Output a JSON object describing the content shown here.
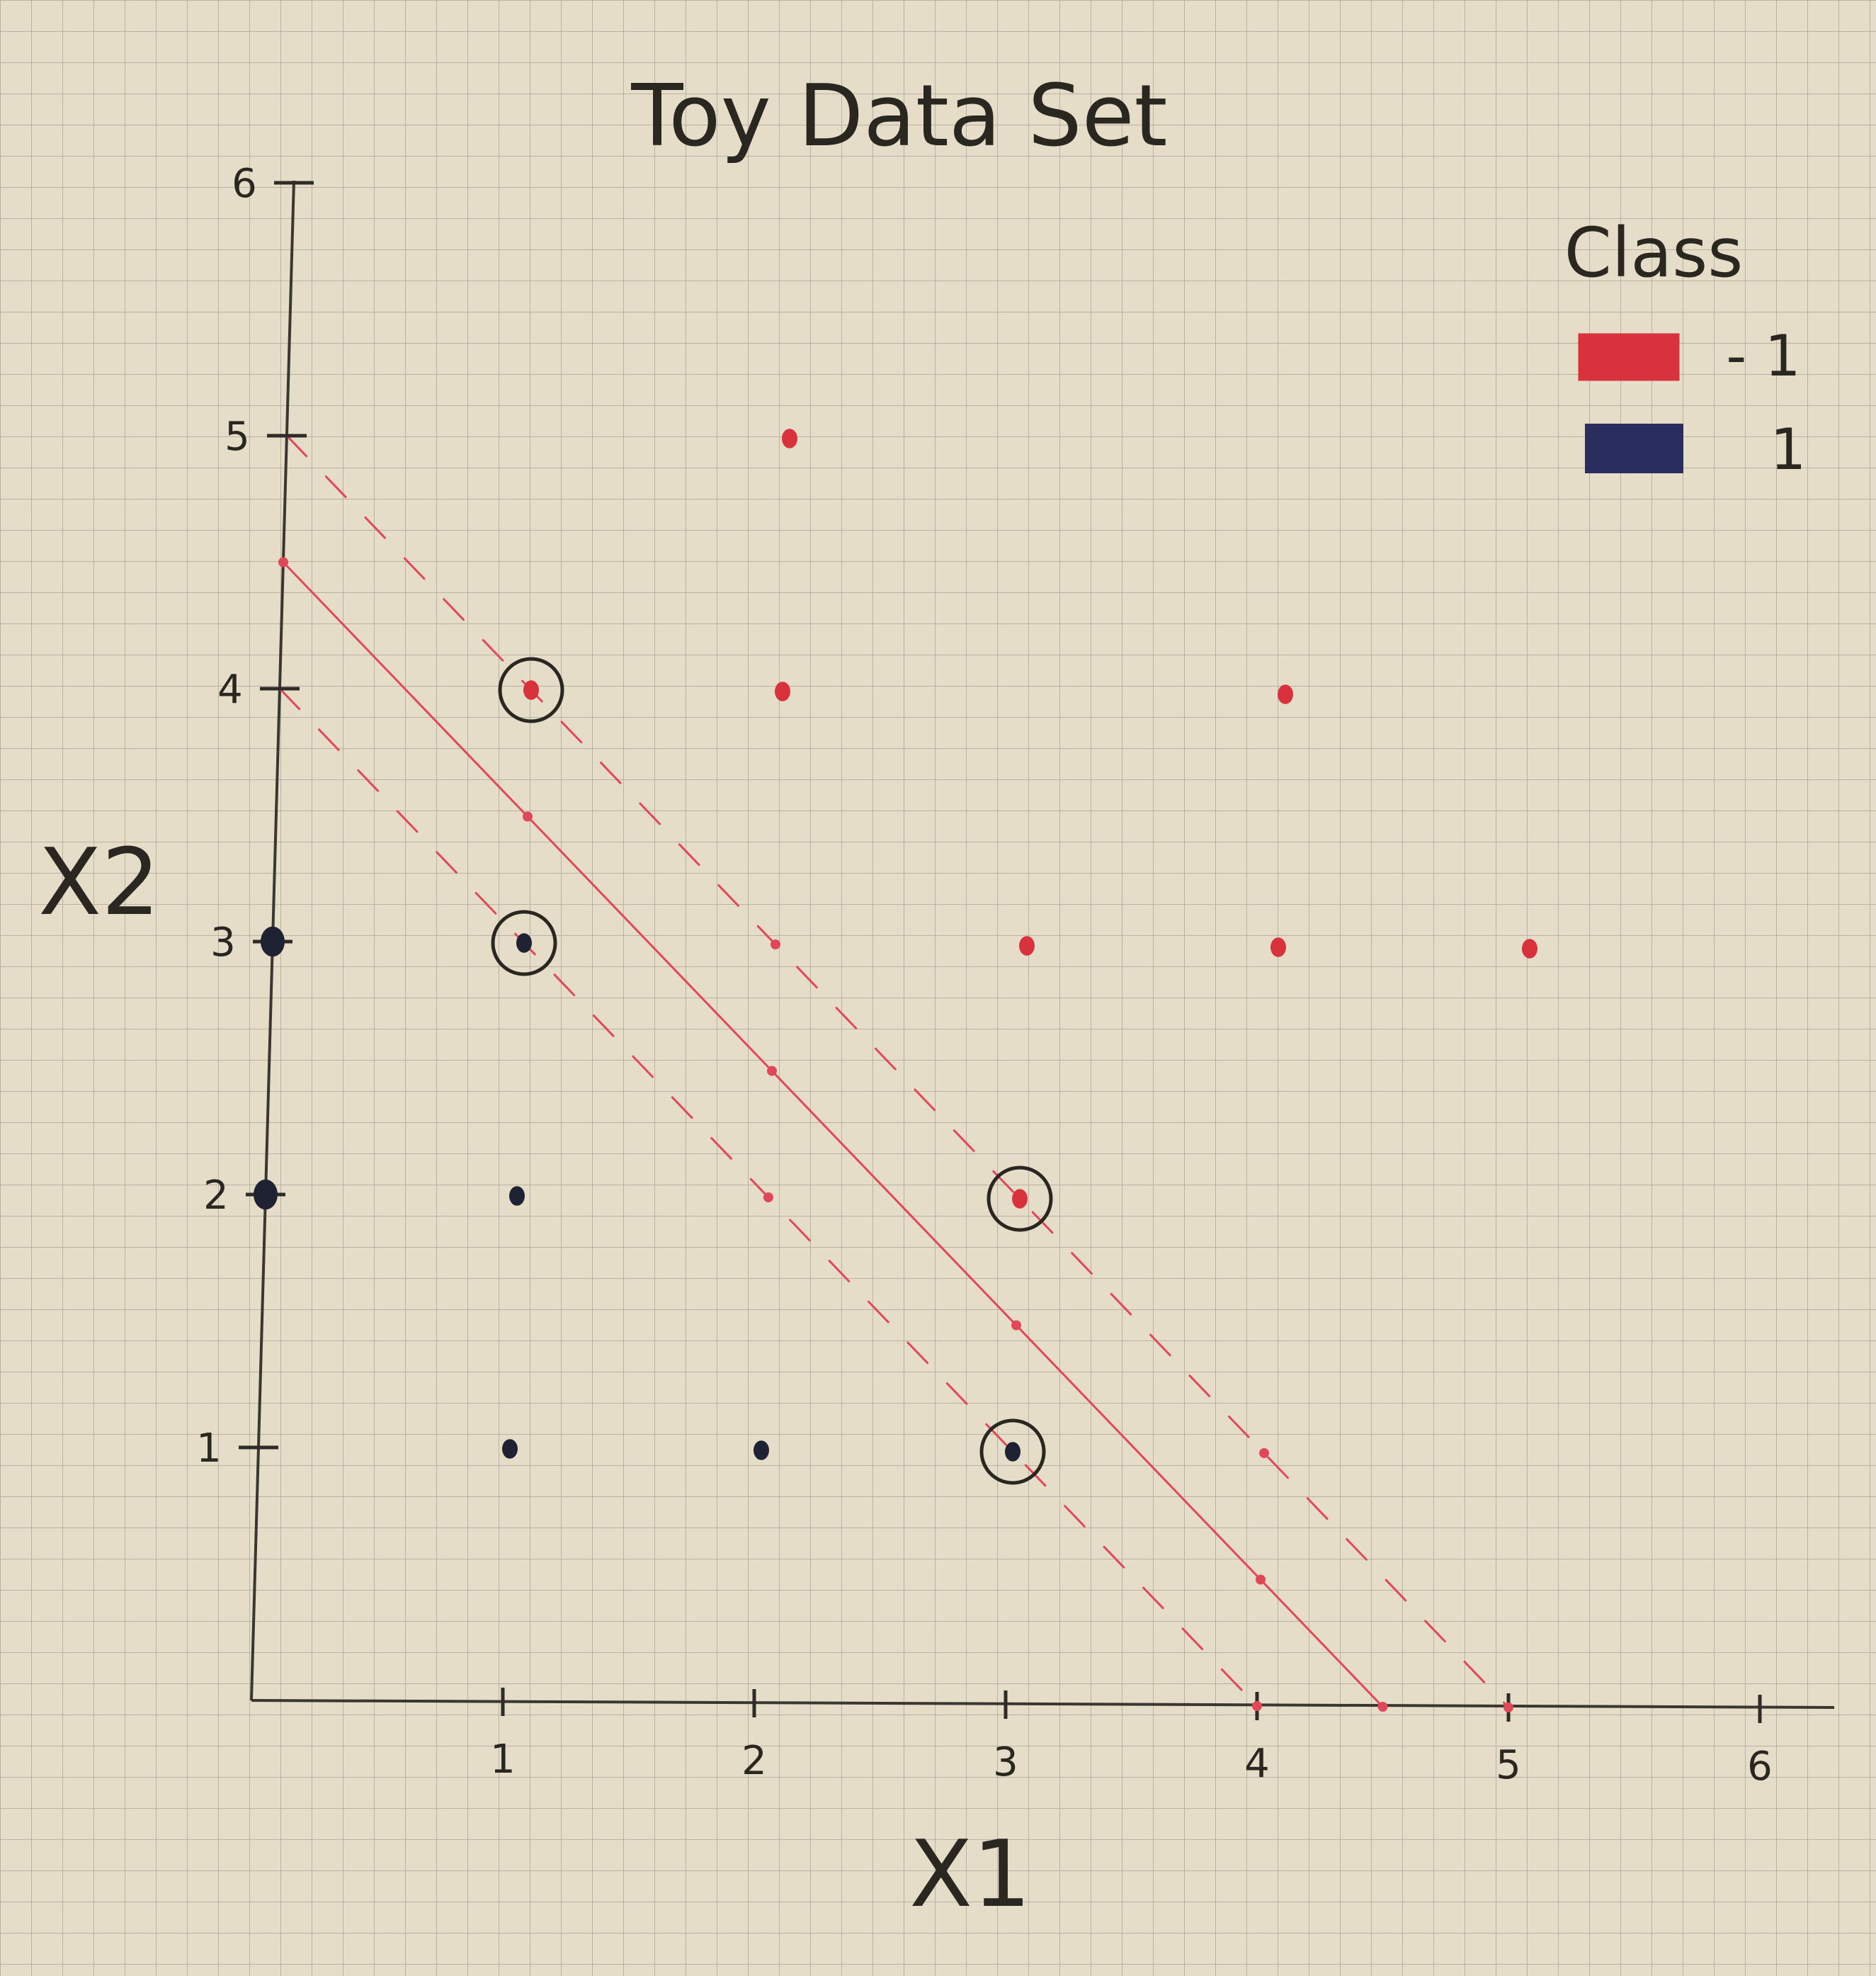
{
  "chart_data": {
    "type": "scatter",
    "title": "Toy Data Set",
    "xlabel": "X1",
    "ylabel": "X2",
    "xlim": [
      0,
      6
    ],
    "ylim": [
      0,
      6
    ],
    "x_ticks": [
      "1",
      "2",
      "3",
      "4",
      "5",
      "6"
    ],
    "y_ticks": [
      "1",
      "2",
      "3",
      "4",
      "5",
      "6"
    ],
    "grid": true,
    "legend": {
      "title": "Class",
      "placement": "top-right",
      "entries": [
        {
          "label": "- 1",
          "color": "#d8333d"
        },
        {
          "label": "1",
          "color": "#2a2e5e"
        }
      ]
    },
    "series": [
      {
        "class": -1,
        "color": "#d8333d",
        "points": [
          {
            "x": 2,
            "y": 5
          },
          {
            "x": 1,
            "y": 4
          },
          {
            "x": 2,
            "y": 4
          },
          {
            "x": 4,
            "y": 4
          },
          {
            "x": 3,
            "y": 3
          },
          {
            "x": 4,
            "y": 3
          },
          {
            "x": 5,
            "y": 3
          },
          {
            "x": 3,
            "y": 2
          }
        ]
      },
      {
        "class": 1,
        "color": "#1f2233",
        "points": [
          {
            "x": 0,
            "y": 3
          },
          {
            "x": 1,
            "y": 3
          },
          {
            "x": 0,
            "y": 2
          },
          {
            "x": 1,
            "y": 2
          },
          {
            "x": 1,
            "y": 1
          },
          {
            "x": 2,
            "y": 1
          },
          {
            "x": 3,
            "y": 1
          }
        ]
      }
    ],
    "support_vectors": [
      {
        "x": 1,
        "y": 4
      },
      {
        "x": 1,
        "y": 3
      },
      {
        "x": 3,
        "y": 2
      },
      {
        "x": 3,
        "y": 1
      }
    ],
    "lines": [
      {
        "kind": "decision-boundary",
        "style": "solid",
        "color": "#e0485a",
        "from": [
          0,
          4.5
        ],
        "to": [
          4.5,
          0
        ]
      },
      {
        "kind": "margin-upper",
        "style": "dashed",
        "color": "#e0485a",
        "from": [
          0,
          5
        ],
        "to": [
          5,
          0
        ]
      },
      {
        "kind": "margin-lower",
        "style": "dashed",
        "color": "#e0485a",
        "from": [
          0,
          4
        ],
        "to": [
          4,
          0
        ]
      }
    ],
    "line_markers": [
      {
        "x": 0,
        "y": 4.5
      },
      {
        "x": 1,
        "y": 3.5
      },
      {
        "x": 2,
        "y": 2.5
      },
      {
        "x": 3,
        "y": 1.5
      },
      {
        "x": 4,
        "y": 0.5
      },
      {
        "x": 4.5,
        "y": 0
      },
      {
        "x": 2,
        "y": 3
      },
      {
        "x": 4,
        "y": 1
      },
      {
        "x": 5,
        "y": 0
      },
      {
        "x": 2,
        "y": 2
      },
      {
        "x": 4,
        "y": 0
      }
    ]
  }
}
